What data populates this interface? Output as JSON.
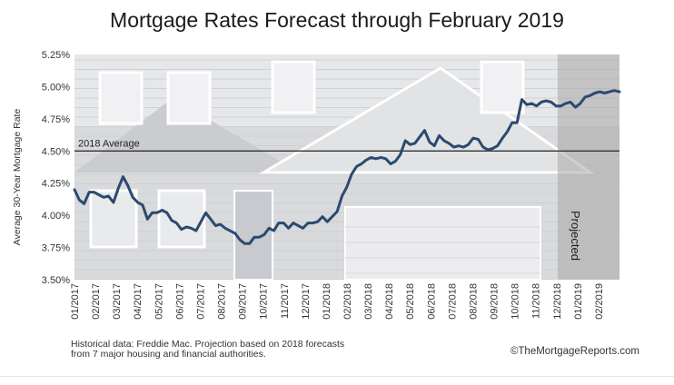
{
  "title": "Mortgage Rates Forecast through February 2019",
  "footer": {
    "source_line1": "Historical data: Freddie Mac. Projection based on 2018 forecasts",
    "source_line2": "from 7 major housing and financial authorities.",
    "credit": "©TheMortgageReports.com"
  },
  "colors": {
    "line": "#2b4a6f",
    "reference_line": "#222222",
    "projection_shade": "#a7a7a7",
    "photo_tint": "#d9dadc"
  },
  "chart_data": {
    "type": "line",
    "title": "Mortgage Rates Forecast through February 2019",
    "ylabel": "Average 30-Year Mortgage Rate",
    "xlabel": "",
    "ylim": [
      3.5,
      5.25
    ],
    "xlim": [
      0,
      26
    ],
    "y_ticks": [
      3.5,
      3.75,
      4.0,
      4.25,
      4.5,
      4.75,
      5.0,
      5.25
    ],
    "y_tick_labels": [
      "3.50%",
      "3.75%",
      "4.00%",
      "4.25%",
      "4.50%",
      "4.75%",
      "5.00%",
      "5.25%"
    ],
    "x_tick_labels": [
      "01/2017",
      "02/2017",
      "03/2017",
      "04/2017",
      "05/2017",
      "06/2017",
      "07/2017",
      "08/2017",
      "09/2017",
      "10/2017",
      "11/2017",
      "12/2017",
      "01/2018",
      "02/2018",
      "03/2018",
      "04/2018",
      "05/2018",
      "06/2018",
      "07/2018",
      "08/2018",
      "09/2018",
      "10/2018",
      "11/2018",
      "12/2018",
      "01/2019",
      "02/2019"
    ],
    "grid": false,
    "reference_line": {
      "value": 4.5,
      "label": "2018 Average"
    },
    "projection": {
      "start_x": 23.05,
      "label": "Projected"
    },
    "series": [
      {
        "x": [
          0.0,
          0.23,
          0.46,
          0.7,
          0.93,
          1.16,
          1.39,
          1.62,
          1.86,
          2.09,
          2.32,
          2.55,
          2.78,
          3.02,
          3.25,
          3.48,
          3.71,
          3.94,
          4.18,
          4.41,
          4.64,
          4.87,
          5.1,
          5.34,
          5.57,
          5.8,
          6.03,
          6.26,
          6.5,
          6.73,
          6.96,
          7.19,
          7.42,
          7.66,
          7.89,
          8.12,
          8.35,
          8.58,
          8.82,
          9.05,
          9.28,
          9.51,
          9.74,
          9.98,
          10.21,
          10.44,
          10.67,
          10.9,
          11.14,
          11.37,
          11.6,
          11.83,
          12.06,
          12.3,
          12.53,
          12.76,
          12.99,
          13.22,
          13.46,
          13.69,
          13.92,
          14.15,
          14.38,
          14.62,
          14.85,
          15.08,
          15.31,
          15.54,
          15.78,
          16.01,
          16.24,
          16.47,
          16.7,
          16.94,
          17.17,
          17.4,
          17.63,
          17.86,
          18.1,
          18.33,
          18.56,
          18.79,
          19.02,
          19.26,
          19.49,
          19.72,
          19.95,
          20.18,
          20.42,
          20.65,
          20.88,
          21.11,
          21.34,
          21.58,
          21.81,
          22.04,
          22.27,
          22.5,
          22.74,
          22.97,
          23.2,
          23.43,
          23.66,
          23.9,
          24.13,
          24.36,
          24.59,
          24.82,
          25.06,
          25.29,
          25.52,
          25.75,
          26.0
        ],
        "values": [
          4.2,
          4.12,
          4.09,
          4.18,
          4.18,
          4.16,
          4.14,
          4.15,
          4.1,
          4.21,
          4.3,
          4.23,
          4.14,
          4.1,
          4.08,
          3.97,
          4.02,
          4.02,
          4.04,
          4.02,
          3.96,
          3.94,
          3.89,
          3.91,
          3.9,
          3.88,
          3.95,
          4.02,
          3.97,
          3.92,
          3.93,
          3.9,
          3.88,
          3.86,
          3.81,
          3.78,
          3.78,
          3.83,
          3.83,
          3.85,
          3.9,
          3.88,
          3.94,
          3.94,
          3.9,
          3.94,
          3.92,
          3.9,
          3.94,
          3.94,
          3.95,
          3.99,
          3.95,
          3.99,
          4.03,
          4.15,
          4.22,
          4.32,
          4.38,
          4.4,
          4.43,
          4.45,
          4.44,
          4.45,
          4.44,
          4.4,
          4.42,
          4.47,
          4.58,
          4.55,
          4.56,
          4.61,
          4.66,
          4.57,
          4.54,
          4.62,
          4.58,
          4.56,
          4.53,
          4.54,
          4.53,
          4.55,
          4.6,
          4.59,
          4.53,
          4.51,
          4.52,
          4.54,
          4.6,
          4.65,
          4.72,
          4.72,
          4.9,
          4.86,
          4.87,
          4.85,
          4.88,
          4.89,
          4.88,
          4.85,
          4.85,
          4.87,
          4.88,
          4.84,
          4.87,
          4.92,
          4.93,
          4.95,
          4.96,
          4.95,
          4.96,
          4.97,
          4.96
        ]
      }
    ]
  }
}
